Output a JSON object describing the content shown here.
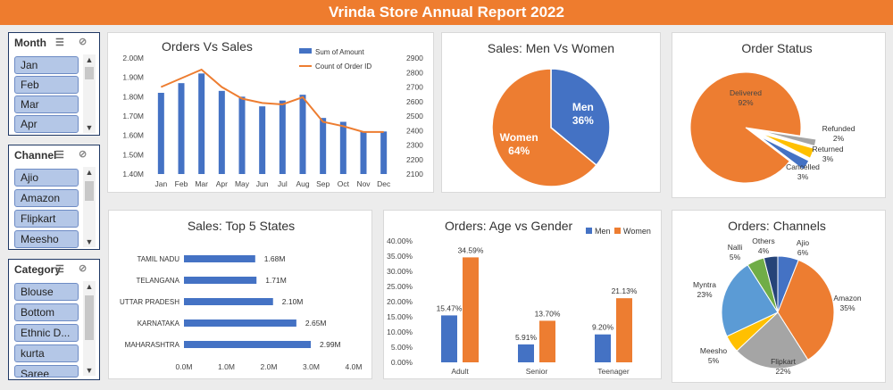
{
  "banner": {
    "title": "Vrinda Store Annual Report 2022"
  },
  "slicers": {
    "month": {
      "label": "Month",
      "items": [
        "Jan",
        "Feb",
        "Mar",
        "Apr"
      ]
    },
    "channel": {
      "label": "Channel",
      "items": [
        "Ajio",
        "Amazon",
        "Flipkart",
        "Meesho"
      ]
    },
    "category": {
      "label": "Category",
      "items": [
        "Blouse",
        "Bottom",
        "Ethnic D...",
        "kurta",
        "Saree"
      ]
    }
  },
  "colors": {
    "orange": "#ed7d31",
    "blue": "#4472c4",
    "gray": "#a5a5a5",
    "yellow": "#ffc000",
    "lightblue": "#5b9bd5",
    "green": "#70ad47",
    "navy": "#264478",
    "banner": "#ee7c2e"
  },
  "chart_data": [
    {
      "id": "orders_vs_sales",
      "type": "bar",
      "title": "Orders Vs Sales",
      "categories": [
        "Jan",
        "Feb",
        "Mar",
        "Apr",
        "May",
        "Jun",
        "Jul",
        "Aug",
        "Sep",
        "Oct",
        "Nov",
        "Dec"
      ],
      "series": [
        {
          "name": "Sum of Amount",
          "type": "bar",
          "axis": "left",
          "values": [
            1.82,
            1.87,
            1.92,
            1.83,
            1.8,
            1.75,
            1.78,
            1.81,
            1.69,
            1.67,
            1.62,
            1.62
          ]
        },
        {
          "name": "Count of Order ID",
          "type": "line",
          "axis": "right",
          "values": [
            2700,
            2760,
            2820,
            2700,
            2620,
            2590,
            2580,
            2630,
            2460,
            2430,
            2390,
            2390
          ]
        }
      ],
      "y_left_ticks": [
        "1.40M",
        "1.50M",
        "1.60M",
        "1.70M",
        "1.80M",
        "1.90M",
        "2.00M"
      ],
      "y_left_range": [
        1.4,
        2.0
      ],
      "y_right_ticks": [
        "2100",
        "2200",
        "2300",
        "2400",
        "2500",
        "2600",
        "2700",
        "2800",
        "2900"
      ],
      "y_right_range": [
        2100,
        2900
      ],
      "legend": "top-right"
    },
    {
      "id": "sales_men_women",
      "type": "pie",
      "title": "Sales: Men Vs Women",
      "slices": [
        {
          "label": "Men",
          "value": 36,
          "pct": "36%"
        },
        {
          "label": "Women",
          "value": 64,
          "pct": "64%"
        }
      ]
    },
    {
      "id": "order_status",
      "type": "pie",
      "title": "Order Status",
      "slices": [
        {
          "label": "Delivered",
          "value": 92,
          "pct": "92%"
        },
        {
          "label": "Refunded",
          "value": 2,
          "pct": "2%"
        },
        {
          "label": "Returned",
          "value": 3,
          "pct": "3%"
        },
        {
          "label": "Cancelled",
          "value": 3,
          "pct": "3%"
        }
      ]
    },
    {
      "id": "top5_states",
      "type": "bar",
      "orientation": "horizontal",
      "title": "Sales: Top 5 States",
      "categories": [
        "TAMIL NADU",
        "TELANGANA",
        "UTTAR PRADESH",
        "KARNATAKA",
        "MAHARASHTRA"
      ],
      "values": [
        1.68,
        1.71,
        2.1,
        2.65,
        2.99
      ],
      "value_labels": [
        "1.68M",
        "1.71M",
        "2.10M",
        "2.65M",
        "2.99M"
      ],
      "x_ticks": [
        "0.0M",
        "1.0M",
        "2.0M",
        "3.0M",
        "4.0M"
      ],
      "xlim": [
        0,
        4
      ]
    },
    {
      "id": "age_vs_gender",
      "type": "bar",
      "title": "Orders: Age vs Gender",
      "categories": [
        "Adult",
        "Senior",
        "Teenager"
      ],
      "series": [
        {
          "name": "Men",
          "values": [
            15.47,
            5.91,
            9.2
          ],
          "labels": [
            "15.47%",
            "5.91%",
            "9.20%"
          ]
        },
        {
          "name": "Women",
          "values": [
            34.59,
            13.7,
            21.13
          ],
          "labels": [
            "34.59%",
            "13.70%",
            "21.13%"
          ]
        }
      ],
      "y_ticks": [
        "0.00%",
        "5.00%",
        "10.00%",
        "15.00%",
        "20.00%",
        "25.00%",
        "30.00%",
        "35.00%",
        "40.00%"
      ],
      "ylim": [
        0,
        40
      ],
      "legend": "top-right"
    },
    {
      "id": "channels",
      "type": "pie",
      "title": "Orders: Channels",
      "slices": [
        {
          "label": "Ajio",
          "value": 6,
          "pct": "6%"
        },
        {
          "label": "Amazon",
          "value": 35,
          "pct": "35%"
        },
        {
          "label": "Flipkart",
          "value": 22,
          "pct": "22%"
        },
        {
          "label": "Meesho",
          "value": 5,
          "pct": "5%"
        },
        {
          "label": "Myntra",
          "value": 23,
          "pct": "23%"
        },
        {
          "label": "Nalli",
          "value": 5,
          "pct": "5%"
        },
        {
          "label": "Others",
          "value": 4,
          "pct": "4%"
        }
      ]
    }
  ]
}
